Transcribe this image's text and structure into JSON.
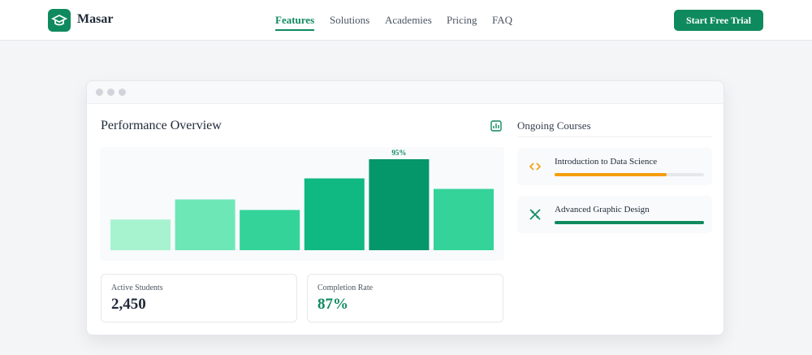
{
  "header": {
    "brand": "Masar",
    "nav": [
      "Features",
      "Solutions",
      "Academies",
      "Pricing",
      "FAQ"
    ],
    "active_nav": "Features",
    "cta": "Start Free Trial"
  },
  "dashboard": {
    "title": "Performance Overview",
    "chart": {
      "type": "bar",
      "values": [
        32,
        53,
        42,
        75,
        95,
        64
      ],
      "value_labels": [
        null,
        null,
        null,
        null,
        "95%",
        null
      ],
      "colors": [
        "#a7f3d0",
        "#6ee7b7",
        "#34d399",
        "#10b981",
        "#059669",
        "#34d399"
      ]
    },
    "stats": [
      {
        "label": "Active Students",
        "value": "2,450"
      },
      {
        "label": "Completion Rate",
        "value": "87%"
      }
    ],
    "courses_title": "Ongoing Courses",
    "courses": [
      {
        "name": "Introduction to Data Science",
        "progress": 75,
        "color": "#f59e0b"
      },
      {
        "name": "Advanced Graphic Design",
        "progress": 100,
        "color": "#0f8a5f"
      }
    ]
  }
}
